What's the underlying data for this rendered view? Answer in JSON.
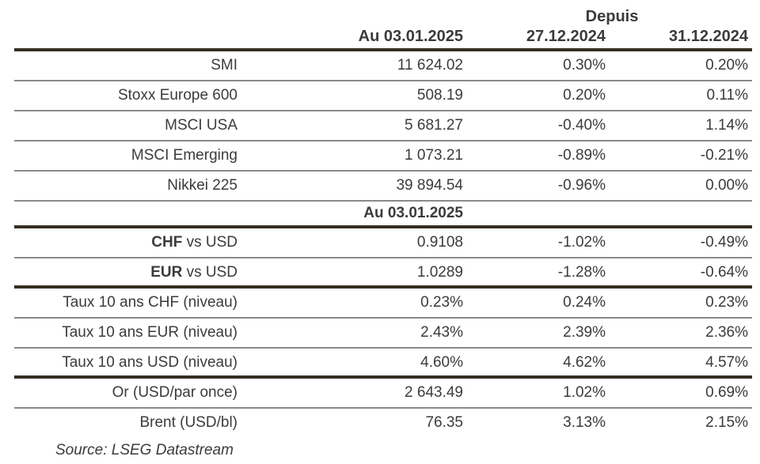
{
  "colors": {
    "background": "#ffffff",
    "text": "#3b3b3b",
    "thick_line": "#362e23",
    "thin_line": "#8a8a8a"
  },
  "header": {
    "depuis": "Depuis",
    "col_value": "Au 03.01.2025",
    "col_since1": "27.12.2024",
    "col_since2": "31.12.2024"
  },
  "table": {
    "rows": [
      {
        "type": "data",
        "bold": "",
        "label": "SMI",
        "value": "11 624.02",
        "pct1": "0.30%",
        "pct2": "0.20%",
        "divider": "thin"
      },
      {
        "type": "data",
        "bold": "",
        "label": "Stoxx Europe 600",
        "value": "508.19",
        "pct1": "0.20%",
        "pct2": "0.11%",
        "divider": "thin"
      },
      {
        "type": "data",
        "bold": "",
        "label": "MSCI USA",
        "value": "5 681.27",
        "pct1": "-0.40%",
        "pct2": "1.14%",
        "divider": "thin"
      },
      {
        "type": "data",
        "bold": "",
        "label": "MSCI Emerging",
        "value": "1 073.21",
        "pct1": "-0.89%",
        "pct2": "-0.21%",
        "divider": "thin"
      },
      {
        "type": "data",
        "bold": "",
        "label": "Nikkei 225",
        "value": "39 894.54",
        "pct1": "-0.96%",
        "pct2": "0.00%",
        "divider": "thin"
      },
      {
        "type": "subheader",
        "label": "Au 03.01.2025",
        "divider": "thick"
      },
      {
        "type": "data",
        "bold": "CHF",
        "label": " vs USD",
        "value": "0.9108",
        "pct1": "-1.02%",
        "pct2": "-0.49%",
        "divider": "thin"
      },
      {
        "type": "data",
        "bold": "EUR",
        "label": " vs USD",
        "value": "1.0289",
        "pct1": "-1.28%",
        "pct2": "-0.64%",
        "divider": "thick"
      },
      {
        "type": "data",
        "bold": "",
        "label": "Taux 10 ans CHF (niveau)",
        "value": "0.23%",
        "pct1": "0.24%",
        "pct2": "0.23%",
        "divider": "thin"
      },
      {
        "type": "data",
        "bold": "",
        "label": "Taux 10 ans EUR (niveau)",
        "value": "2.43%",
        "pct1": "2.39%",
        "pct2": "2.36%",
        "divider": "thin"
      },
      {
        "type": "data",
        "bold": "",
        "label": "Taux 10 ans USD (niveau)",
        "value": "4.60%",
        "pct1": "4.62%",
        "pct2": "4.57%",
        "divider": "thick"
      },
      {
        "type": "data",
        "bold": "",
        "label": "Or (USD/par once)",
        "value": "2 643.49",
        "pct1": "1.02%",
        "pct2": "0.69%",
        "divider": "thin"
      },
      {
        "type": "data",
        "bold": "",
        "label": "Brent (USD/bl)",
        "value": "76.35",
        "pct1": "3.13%",
        "pct2": "2.15%",
        "divider": "none"
      }
    ]
  },
  "source": "Source: LSEG Datastream",
  "chart_data": {
    "type": "table",
    "columns": [
      "",
      "Au 03.01.2025",
      "Depuis 27.12.2024",
      "Depuis 31.12.2024"
    ],
    "rows": [
      [
        "SMI",
        "11 624.02",
        "0.30%",
        "0.20%"
      ],
      [
        "Stoxx Europe 600",
        "508.19",
        "0.20%",
        "0.11%"
      ],
      [
        "MSCI USA",
        "5 681.27",
        "-0.40%",
        "1.14%"
      ],
      [
        "MSCI Emerging",
        "1 073.21",
        "-0.89%",
        "-0.21%"
      ],
      [
        "Nikkei 225",
        "39 894.54",
        "-0.96%",
        "0.00%"
      ],
      [
        "CHF vs USD",
        "0.9108",
        "-1.02%",
        "-0.49%"
      ],
      [
        "EUR vs USD",
        "1.0289",
        "-1.28%",
        "-0.64%"
      ],
      [
        "Taux 10 ans CHF (niveau)",
        "0.23%",
        "0.24%",
        "0.23%"
      ],
      [
        "Taux 10 ans EUR (niveau)",
        "2.43%",
        "2.39%",
        "2.36%"
      ],
      [
        "Taux 10 ans USD (niveau)",
        "4.60%",
        "4.62%",
        "4.57%"
      ],
      [
        "Or (USD/par once)",
        "2 643.49",
        "1.02%",
        "0.69%"
      ],
      [
        "Brent (USD/bl)",
        "76.35",
        "3.13%",
        "2.15%"
      ]
    ]
  }
}
